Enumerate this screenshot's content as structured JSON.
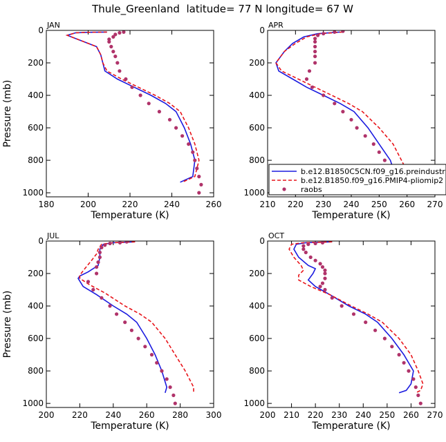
{
  "figure_title": "Thule_Greenland  latitude= 77 N longitude= 67 W",
  "colors": {
    "model1": "#1a1adf",
    "model2": "#e8141a",
    "obs": "#b0336a"
  },
  "chart_data": [
    {
      "type": "line",
      "panel_label": "JAN",
      "xlabel": "Temperature (K)",
      "ylabel": "Pressure (mb)",
      "xlim": [
        180,
        260
      ],
      "xticks": [
        180,
        200,
        220,
        240,
        260
      ],
      "ylim": [
        1025,
        0
      ],
      "yticks": [
        0,
        200,
        400,
        600,
        800,
        1000
      ],
      "series": [
        {
          "values": [
            [
              209,
              10
            ],
            [
              200,
              12
            ],
            [
              194,
              15
            ],
            [
              190,
              30
            ],
            [
              196,
              60
            ],
            [
              204,
              100
            ],
            [
              206,
              150
            ],
            [
              207,
              200
            ],
            [
              208,
              250
            ],
            [
              214,
              300
            ],
            [
              222,
              350
            ],
            [
              230,
              400
            ],
            [
              237,
              450
            ],
            [
              242,
              500
            ],
            [
              246,
              600
            ],
            [
              249,
              700
            ],
            [
              251,
              800
            ],
            [
              250,
              900
            ],
            [
              244,
              935
            ]
          ]
        },
        {
          "values": [
            [
              209,
              10
            ],
            [
              200,
              12
            ],
            [
              194,
              15
            ],
            [
              190,
              30
            ],
            [
              196,
              60
            ],
            [
              204,
              100
            ],
            [
              206,
              150
            ],
            [
              207,
              200
            ],
            [
              209,
              250
            ],
            [
              216,
              300
            ],
            [
              224,
              350
            ],
            [
              232,
              400
            ],
            [
              239,
              450
            ],
            [
              244,
              500
            ],
            [
              248,
              600
            ],
            [
              251,
              700
            ],
            [
              253,
              800
            ],
            [
              251,
              900
            ],
            [
              245,
              935
            ]
          ]
        },
        {
          "values": [
            [
              217,
              10
            ],
            [
              215,
              15
            ],
            [
              213,
              25
            ],
            [
              212,
              40
            ],
            [
              210,
              55
            ],
            [
              210,
              70
            ],
            [
              211,
              100
            ],
            [
              212,
              130
            ],
            [
              213,
              160
            ],
            [
              214,
              200
            ],
            [
              215,
              250
            ],
            [
              218,
              300
            ],
            [
              221,
              350
            ],
            [
              225,
              400
            ],
            [
              229,
              450
            ],
            [
              234,
              500
            ],
            [
              239,
              550
            ],
            [
              242,
              600
            ],
            [
              245,
              650
            ],
            [
              248,
              700
            ],
            [
              250,
              750
            ],
            [
              251,
              800
            ],
            [
              252,
              850
            ],
            [
              253,
              900
            ],
            [
              254,
              950
            ],
            [
              253,
              1000
            ]
          ]
        }
      ]
    },
    {
      "type": "line",
      "panel_label": "APR",
      "xlabel": "Temperature (K)",
      "ylabel": "",
      "xlim": [
        210,
        270
      ],
      "xticks": [
        210,
        220,
        230,
        240,
        250,
        260,
        270
      ],
      "ylim": [
        1025,
        0
      ],
      "yticks": [
        0,
        200,
        400,
        600,
        800,
        1000
      ],
      "legend": {
        "entries": [
          "b.e12.B1850C5CN.f09_g16.preindustrial.00",
          "b.e12.B1850.f09_g16.PMIP4-pliomip2",
          "raobs"
        ]
      },
      "series": [
        {
          "values": [
            [
              236,
              10
            ],
            [
              228,
              20
            ],
            [
              223,
              40
            ],
            [
              219,
              80
            ],
            [
              216,
              130
            ],
            [
              213,
              200
            ],
            [
              214,
              250
            ],
            [
              219,
              300
            ],
            [
              224,
              350
            ],
            [
              230,
              400
            ],
            [
              236,
              450
            ],
            [
              241,
              500
            ],
            [
              246,
              600
            ],
            [
              250,
              700
            ],
            [
              254,
              800
            ],
            [
              256,
              900
            ],
            [
              256,
              935
            ]
          ]
        },
        {
          "values": [
            [
              237,
              10
            ],
            [
              229,
              20
            ],
            [
              224,
              40
            ],
            [
              220,
              80
            ],
            [
              216,
              130
            ],
            [
              213,
              200
            ],
            [
              215,
              250
            ],
            [
              221,
              300
            ],
            [
              227,
              350
            ],
            [
              233,
              400
            ],
            [
              239,
              450
            ],
            [
              244,
              500
            ],
            [
              250,
              600
            ],
            [
              255,
              700
            ],
            [
              258,
              800
            ],
            [
              261,
              900
            ],
            [
              260,
              935
            ]
          ]
        },
        {
          "values": [
            [
              237,
              5
            ],
            [
              234,
              10
            ],
            [
              230,
              20
            ],
            [
              228,
              30
            ],
            [
              227,
              50
            ],
            [
              227,
              70
            ],
            [
              227,
              100
            ],
            [
              227,
              130
            ],
            [
              227,
              160
            ],
            [
              227,
              200
            ],
            [
              225,
              250
            ],
            [
              224,
              300
            ],
            [
              226,
              350
            ],
            [
              230,
              400
            ],
            [
              234,
              450
            ],
            [
              237,
              500
            ],
            [
              240,
              550
            ],
            [
              242,
              600
            ],
            [
              245,
              650
            ],
            [
              248,
              700
            ],
            [
              250,
              750
            ],
            [
              252,
              800
            ],
            [
              254,
              850
            ],
            [
              255,
              900
            ],
            [
              257,
              950
            ],
            [
              257,
              1000
            ]
          ]
        }
      ]
    },
    {
      "type": "line",
      "panel_label": "JUL",
      "xlabel": "Temperature (K)",
      "ylabel": "Pressure (mb)",
      "xlim": [
        200,
        300
      ],
      "xticks": [
        200,
        220,
        240,
        260,
        280,
        300
      ],
      "ylim": [
        1025,
        0
      ],
      "yticks": [
        0,
        200,
        400,
        600,
        800,
        1000
      ],
      "series": [
        {
          "values": [
            [
              253,
              5
            ],
            [
              240,
              10
            ],
            [
              234,
              20
            ],
            [
              232,
              50
            ],
            [
              232,
              100
            ],
            [
              231,
              150
            ],
            [
              225,
              190
            ],
            [
              220,
              215
            ],
            [
              219,
              230
            ],
            [
              222,
              280
            ],
            [
              230,
              330
            ],
            [
              240,
              400
            ],
            [
              248,
              450
            ],
            [
              254,
              500
            ],
            [
              260,
              600
            ],
            [
              265,
              700
            ],
            [
              269,
              800
            ],
            [
              272,
              900
            ],
            [
              271,
              935
            ]
          ]
        },
        {
          "values": [
            [
              253,
              5
            ],
            [
              240,
              10
            ],
            [
              233,
              20
            ],
            [
              231,
              50
            ],
            [
              230,
              80
            ],
            [
              227,
              120
            ],
            [
              223,
              170
            ],
            [
              220,
              210
            ],
            [
              220,
              230
            ],
            [
              226,
              270
            ],
            [
              235,
              320
            ],
            [
              247,
              400
            ],
            [
              256,
              450
            ],
            [
              263,
              500
            ],
            [
              271,
              600
            ],
            [
              277,
              700
            ],
            [
              283,
              800
            ],
            [
              288,
              900
            ],
            [
              288,
              935
            ]
          ]
        },
        {
          "values": [
            [
              248,
              5
            ],
            [
              244,
              10
            ],
            [
              238,
              15
            ],
            [
              235,
              25
            ],
            [
              233,
              40
            ],
            [
              232,
              70
            ],
            [
              232,
              100
            ],
            [
              231,
              130
            ],
            [
              230,
              160
            ],
            [
              230,
              200
            ],
            [
              225,
              250
            ],
            [
              228,
              300
            ],
            [
              233,
              350
            ],
            [
              238,
              400
            ],
            [
              242,
              450
            ],
            [
              247,
              500
            ],
            [
              251,
              550
            ],
            [
              255,
              600
            ],
            [
              259,
              650
            ],
            [
              263,
              700
            ],
            [
              266,
              750
            ],
            [
              269,
              800
            ],
            [
              272,
              850
            ],
            [
              274,
              900
            ],
            [
              276,
              950
            ],
            [
              277,
              1000
            ]
          ]
        }
      ]
    },
    {
      "type": "line",
      "panel_label": "OCT",
      "xlabel": "Temperature (K)",
      "ylabel": "",
      "xlim": [
        200,
        270
      ],
      "xticks": [
        200,
        210,
        220,
        230,
        240,
        250,
        260,
        270
      ],
      "ylim": [
        1025,
        0
      ],
      "yticks": [
        0,
        200,
        400,
        600,
        800,
        1000
      ],
      "series": [
        {
          "values": [
            [
              227,
              5
            ],
            [
              216,
              10
            ],
            [
              212,
              20
            ],
            [
              211,
              50
            ],
            [
              213,
              100
            ],
            [
              217,
              150
            ],
            [
              220,
              170
            ],
            [
              219,
              200
            ],
            [
              217,
              240
            ],
            [
              220,
              280
            ],
            [
              226,
              330
            ],
            [
              234,
              400
            ],
            [
              241,
              450
            ],
            [
              246,
              500
            ],
            [
              252,
              600
            ],
            [
              257,
              700
            ],
            [
              261,
              800
            ],
            [
              260,
              880
            ],
            [
              258,
              920
            ],
            [
              255,
              935
            ]
          ]
        },
        {
          "values": [
            [
              227,
              5
            ],
            [
              215,
              10
            ],
            [
              210,
              20
            ],
            [
              209,
              50
            ],
            [
              211,
              100
            ],
            [
              214,
              150
            ],
            [
              215,
              180
            ],
            [
              213,
              210
            ],
            [
              213,
              240
            ],
            [
              218,
              280
            ],
            [
              226,
              330
            ],
            [
              235,
              400
            ],
            [
              242,
              450
            ],
            [
              248,
              500
            ],
            [
              255,
              600
            ],
            [
              260,
              700
            ],
            [
              263,
              800
            ],
            [
              265,
              880
            ],
            [
              264,
              920
            ],
            [
              262,
              935
            ]
          ]
        },
        {
          "values": [
            [
              223,
              10
            ],
            [
              220,
              15
            ],
            [
              217,
              20
            ],
            [
              215,
              30
            ],
            [
              215,
              50
            ],
            [
              216,
              70
            ],
            [
              218,
              100
            ],
            [
              220,
              120
            ],
            [
              222,
              140
            ],
            [
              223,
              160
            ],
            [
              224,
              180
            ],
            [
              224,
              200
            ],
            [
              224,
              230
            ],
            [
              223,
              260
            ],
            [
              222,
              280
            ],
            [
              224,
              300
            ],
            [
              227,
              350
            ],
            [
              231,
              400
            ],
            [
              236,
              450
            ],
            [
              241,
              500
            ],
            [
              245,
              550
            ],
            [
              249,
              600
            ],
            [
              252,
              650
            ],
            [
              255,
              700
            ],
            [
              257,
              750
            ],
            [
              259,
              800
            ],
            [
              261,
              850
            ],
            [
              262,
              900
            ],
            [
              263,
              950
            ],
            [
              264,
              1000
            ]
          ]
        }
      ]
    }
  ]
}
